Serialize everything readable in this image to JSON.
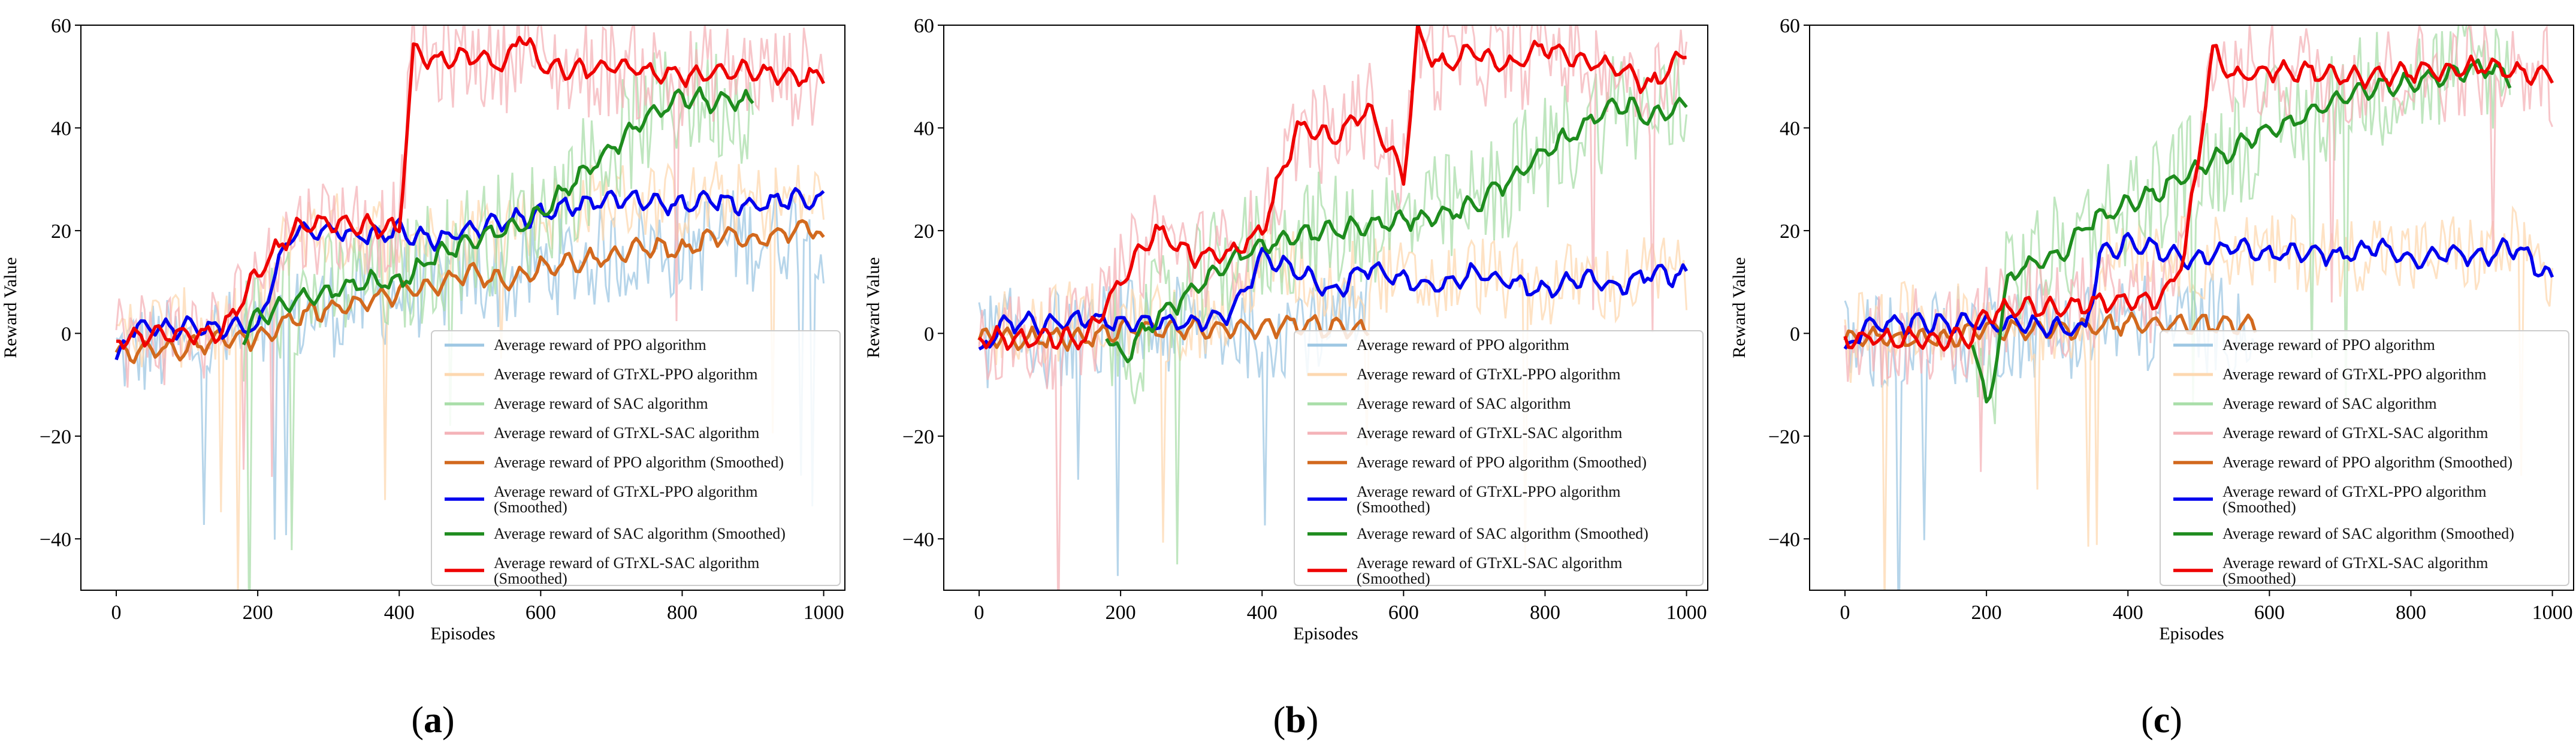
{
  "figure": {
    "y_axis_label": "Reward Value",
    "x_axis_label": "Episodes",
    "legend_entries": [
      {
        "label": "Average reward of PPO algorithm",
        "color": "#9ec7e3",
        "style": "raw"
      },
      {
        "label": "Average reward of GTrXL-PPO algorithm",
        "color": "#fdd8b0",
        "style": "raw"
      },
      {
        "label": "Average reward of SAC algorithm",
        "color": "#a9dea9",
        "style": "raw"
      },
      {
        "label": "Average reward of GTrXL-SAC algorithm",
        "color": "#f4b3b8",
        "style": "raw"
      },
      {
        "label": "Average reward of PPO algorithm (Smoothed)",
        "color": "#d2691e",
        "style": "smooth"
      },
      {
        "label": "Average reward of GTrXL-PPO algorithm (Smoothed)",
        "line1": "Average reward of GTrXL-PPO algorithm",
        "line2": "(Smoothed)",
        "color": "#0000ee",
        "style": "smooth"
      },
      {
        "label": "Average reward of SAC algorithm (Smoothed)",
        "color": "#1e8c1e",
        "style": "smooth"
      },
      {
        "label": "Average reward of GTrXL-SAC algorithm (Smoothed)",
        "line1": "Average reward of GTrXL-SAC algorithm",
        "line2": "(Smoothed)",
        "color": "#ee0000",
        "style": "smooth"
      }
    ]
  },
  "chart_data": [
    {
      "type": "line",
      "panel_label": "a",
      "xlabel": "Episodes",
      "ylabel": "Reward Value",
      "xlim": [
        -50,
        1030
      ],
      "ylim": [
        -50,
        60
      ],
      "xticks": [
        0,
        200,
        400,
        600,
        800,
        1000
      ],
      "yticks": [
        -40,
        -20,
        0,
        20,
        40,
        60
      ],
      "legend_position": "lower-right",
      "series": [
        {
          "name": "PPO (Smoothed)",
          "x": [
            0,
            50,
            100,
            150,
            200,
            250,
            300,
            350,
            400,
            450,
            500,
            550,
            600,
            650,
            700,
            750,
            800,
            850,
            900,
            950,
            990,
            1000
          ],
          "values": [
            -4,
            -3,
            -3,
            -1,
            -1,
            3,
            5,
            6,
            8,
            9,
            12,
            10,
            13,
            14,
            15,
            17,
            16,
            19,
            18,
            20,
            21,
            17
          ]
        },
        {
          "name": "GTrXL-PPO (Smoothed)",
          "x": [
            0,
            20,
            50,
            100,
            150,
            200,
            230,
            250,
            300,
            350,
            400,
            450,
            500,
            550,
            600,
            650,
            700,
            750,
            800,
            850,
            900,
            950,
            1000
          ],
          "values": [
            -6,
            1,
            1,
            1,
            1,
            1,
            14,
            20,
            20,
            19,
            20,
            18,
            20,
            22,
            23,
            25,
            26,
            26,
            25,
            26,
            25,
            26,
            26
          ]
        },
        {
          "name": "SAC (Smoothed)",
          "x": [
            180,
            200,
            250,
            300,
            350,
            400,
            450,
            500,
            550,
            600,
            650,
            700,
            750,
            800,
            850,
            900
          ],
          "values": [
            0,
            3,
            6,
            8,
            10,
            10,
            15,
            18,
            20,
            23,
            30,
            36,
            42,
            46,
            45,
            45
          ]
        },
        {
          "name": "GTrXL-SAC (Smoothed)",
          "x": [
            0,
            150,
            200,
            250,
            300,
            350,
            400,
            420,
            450,
            500,
            550,
            570,
            600,
            650,
            700,
            750,
            800,
            850,
            900,
            950,
            1000
          ],
          "values": [
            -1,
            0,
            12,
            20,
            22,
            21,
            20,
            55,
            53,
            54,
            52,
            59,
            52,
            51,
            52,
            51,
            50,
            51,
            51,
            50,
            50
          ]
        }
      ]
    },
    {
      "type": "line",
      "panel_label": "b",
      "xlabel": "Episodes",
      "ylabel": "Reward Value",
      "xlim": [
        -50,
        1030
      ],
      "ylim": [
        -50,
        60
      ],
      "xticks": [
        0,
        200,
        400,
        600,
        800,
        1000
      ],
      "yticks": [
        -40,
        -20,
        0,
        20,
        40,
        60
      ],
      "legend_position": "lower-right",
      "series": [
        {
          "name": "PPO (Smoothed)",
          "x": [
            0,
            50,
            100,
            150,
            200,
            250,
            300,
            350,
            400,
            450,
            500,
            550
          ],
          "values": [
            -1,
            -1,
            -1,
            -1,
            1,
            1,
            1,
            1,
            1,
            2,
            1,
            1
          ]
        },
        {
          "name": "GTrXL-PPO (Smoothed)",
          "x": [
            0,
            30,
            100,
            150,
            200,
            250,
            300,
            350,
            380,
            400,
            450,
            500,
            550,
            600,
            650,
            700,
            750,
            800,
            850,
            900,
            950,
            1000
          ],
          "values": [
            -5,
            2,
            2,
            3,
            2,
            2,
            2,
            3,
            10,
            15,
            12,
            8,
            13,
            10,
            9,
            12,
            10,
            8,
            11,
            9,
            12,
            11
          ]
        },
        {
          "name": "SAC (Smoothed)",
          "x": [
            180,
            200,
            250,
            300,
            350,
            400,
            450,
            500,
            550,
            600,
            650,
            700,
            750,
            800,
            850,
            900,
            950,
            1000
          ],
          "values": [
            0,
            -5,
            3,
            8,
            14,
            17,
            19,
            20,
            21,
            22,
            23,
            25,
            30,
            35,
            40,
            45,
            42,
            45
          ]
        },
        {
          "name": "GTrXL-SAC (Smoothed)",
          "x": [
            0,
            150,
            200,
            250,
            300,
            350,
            400,
            450,
            500,
            550,
            600,
            620,
            650,
            700,
            750,
            800,
            850,
            900,
            950,
            1000
          ],
          "values": [
            -1,
            -1,
            10,
            20,
            15,
            15,
            20,
            40,
            38,
            44,
            30,
            58,
            52,
            55,
            52,
            56,
            53,
            52,
            48,
            55
          ]
        }
      ]
    },
    {
      "type": "line",
      "panel_label": "c",
      "xlabel": "Episodes",
      "ylabel": "Reward Value",
      "xlim": [
        -50,
        1030
      ],
      "ylim": [
        -50,
        60
      ],
      "xticks": [
        0,
        200,
        400,
        600,
        800,
        1000
      ],
      "yticks": [
        -40,
        -20,
        0,
        20,
        40,
        60
      ],
      "legend_position": "lower-right",
      "series": [
        {
          "name": "PPO (Smoothed)",
          "x": [
            0,
            50,
            100,
            150,
            200,
            250,
            300,
            350,
            400,
            450,
            500,
            550,
            580
          ],
          "values": [
            -1,
            -1,
            -1,
            -1,
            1,
            1,
            1,
            1,
            2,
            2,
            2,
            2,
            1
          ]
        },
        {
          "name": "GTrXL-PPO (Smoothed)",
          "x": [
            0,
            30,
            100,
            150,
            200,
            250,
            300,
            340,
            360,
            400,
            450,
            500,
            550,
            600,
            650,
            700,
            750,
            800,
            850,
            900,
            950,
            1000
          ],
          "values": [
            -4,
            2,
            2,
            2,
            2,
            2,
            1,
            1,
            15,
            18,
            16,
            14,
            17,
            15,
            16,
            15,
            17,
            14,
            16,
            15,
            17,
            10
          ]
        },
        {
          "name": "SAC (Smoothed)",
          "x": [
            180,
            200,
            210,
            230,
            250,
            300,
            350,
            400,
            450,
            500,
            550,
            600,
            650,
            700,
            750,
            800,
            850,
            900,
            940
          ],
          "values": [
            0,
            -15,
            -8,
            10,
            13,
            15,
            22,
            25,
            28,
            32,
            36,
            40,
            42,
            46,
            48,
            49,
            50,
            52,
            50
          ]
        },
        {
          "name": "GTrXL-SAC (Smoothed)",
          "x": [
            0,
            150,
            180,
            200,
            250,
            300,
            350,
            400,
            450,
            480,
            500,
            520,
            550,
            600,
            650,
            700,
            750,
            800,
            850,
            900,
            950,
            1000
          ],
          "values": [
            -1,
            -1,
            -1,
            4,
            5,
            5,
            6,
            6,
            7,
            15,
            35,
            55,
            50,
            51,
            51,
            50,
            50,
            51,
            51,
            52,
            51,
            50
          ]
        }
      ]
    }
  ]
}
